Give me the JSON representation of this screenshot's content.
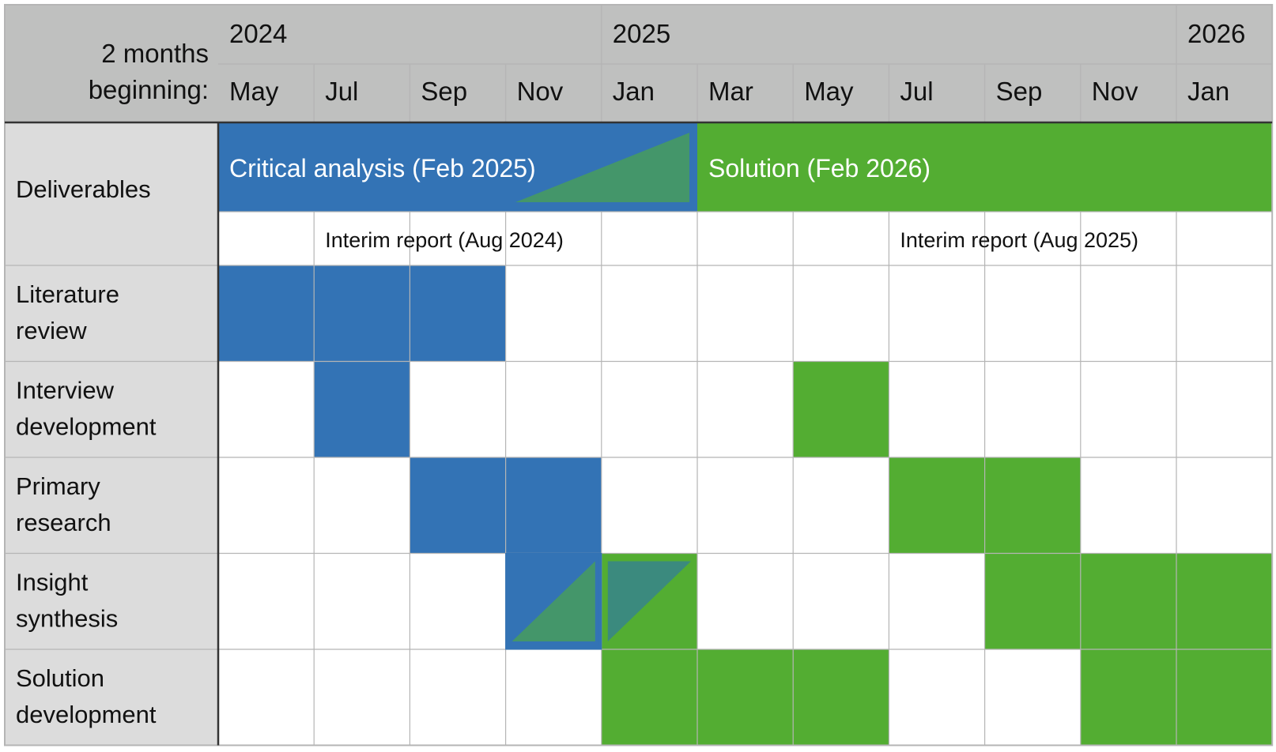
{
  "header": {
    "corner_label_lines": [
      "2 months",
      "beginning:"
    ],
    "years": [
      {
        "label": "2024",
        "start_col": 0,
        "span": 4
      },
      {
        "label": "2025",
        "start_col": 4,
        "span": 6
      },
      {
        "label": "2026",
        "start_col": 10,
        "span": 1
      }
    ],
    "months": [
      "May",
      "Jul",
      "Sep",
      "Nov",
      "Jan",
      "Mar",
      "May",
      "Jul",
      "Sep",
      "Nov",
      "Jan"
    ]
  },
  "deliverables": {
    "row_label": "Deliverables",
    "main": [
      {
        "label": "Critical analysis (Feb 2025)",
        "start_col": 0,
        "end_col": 4,
        "color": "blue",
        "green_wedge": true
      },
      {
        "label": "Solution (Feb 2026)",
        "start_col": 5,
        "end_col": 10,
        "color": "green",
        "green_wedge": false
      }
    ],
    "interim": [
      {
        "label": "Interim report (Aug 2024)",
        "col": 1
      },
      {
        "label": "Interim report (Aug 2025)",
        "col": 7
      }
    ]
  },
  "activities": [
    {
      "label_lines": [
        "Literature",
        "review"
      ],
      "cells": [
        "blue",
        "blue",
        "blue",
        "",
        "",
        "",
        "",
        "",
        "",
        "",
        ""
      ]
    },
    {
      "label_lines": [
        "Interview",
        "development"
      ],
      "cells": [
        "",
        "blue",
        "",
        "",
        "",
        "",
        "green",
        "",
        "",
        "",
        ""
      ]
    },
    {
      "label_lines": [
        "Primary",
        "research"
      ],
      "cells": [
        "",
        "",
        "blue",
        "blue",
        "",
        "",
        "",
        "green",
        "green",
        "",
        ""
      ]
    },
    {
      "label_lines": [
        "Insight",
        "synthesis"
      ],
      "cells": [
        "",
        "",
        "",
        "blue-transition",
        "green-transition",
        "",
        "",
        "",
        "green",
        "green",
        "green"
      ]
    },
    {
      "label_lines": [
        "Solution",
        "development"
      ],
      "cells": [
        "",
        "",
        "",
        "",
        "green",
        "green",
        "green",
        "",
        "",
        "green",
        "green"
      ]
    }
  ],
  "colors": {
    "blue": "#3373b5",
    "green": "#53ad32",
    "transition": "#44966a",
    "transition_dark": "#3b8a7e",
    "header_bg": "#bfc0bf",
    "label_bg": "#dcdcdc",
    "grid": "#b5b5b5"
  }
}
